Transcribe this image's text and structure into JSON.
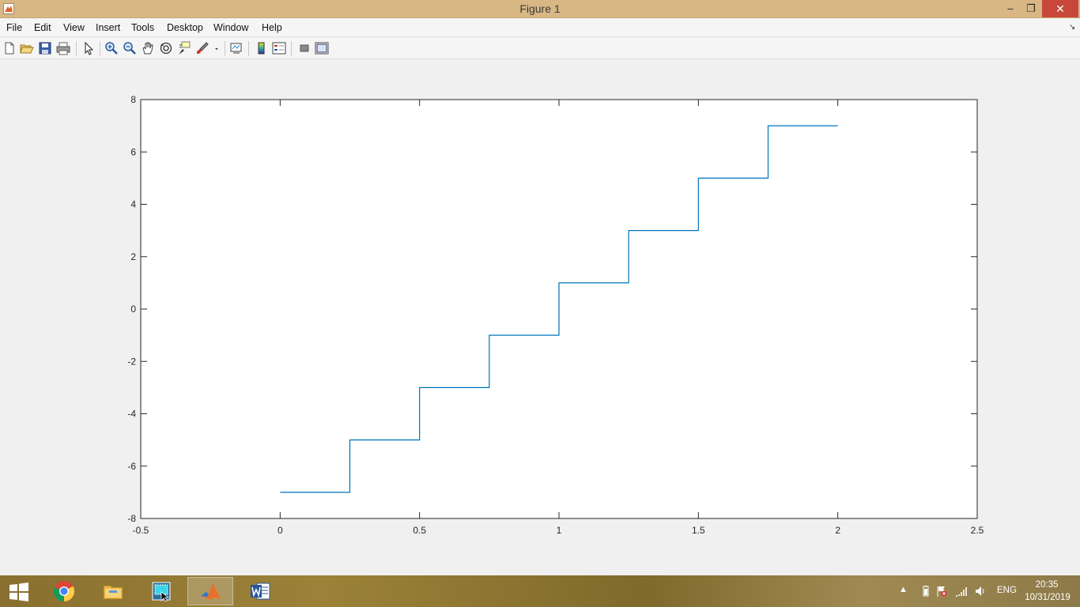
{
  "window": {
    "title": "Figure 1",
    "min_glyph": "–",
    "restore_glyph": "❐",
    "close_glyph": "✕"
  },
  "menu": {
    "items": [
      "File",
      "Edit",
      "View",
      "Insert",
      "Tools",
      "Desktop",
      "Window",
      "Help"
    ],
    "dock_glyph": "↘"
  },
  "toolbar": {
    "icons": [
      "new-figure-icon",
      "open-file-icon",
      "save-icon",
      "print-icon",
      "edit-plot-arrow-icon",
      "zoom-in-icon",
      "zoom-out-icon",
      "pan-hand-icon",
      "rotate-3d-icon",
      "data-cursor-icon",
      "brush-icon",
      "brush-dropdown-icon",
      "link-plot-icon",
      "insert-colorbar-icon",
      "insert-legend-icon",
      "hide-plot-tools-icon",
      "show-plot-tools-icon"
    ]
  },
  "chart_data": {
    "type": "line",
    "title": "",
    "xlabel": "",
    "ylabel": "",
    "xlim": [
      -0.5,
      2.5
    ],
    "ylim": [
      -8,
      8
    ],
    "xticks": [
      -0.5,
      0,
      0.5,
      1,
      1.5,
      2,
      2.5
    ],
    "xtick_labels": [
      "-0.5",
      "0",
      "0.5",
      "1",
      "1.5",
      "2",
      "2.5"
    ],
    "yticks": [
      -8,
      -6,
      -4,
      -2,
      0,
      2,
      4,
      6,
      8
    ],
    "ytick_labels": [
      "-8",
      "-6",
      "-4",
      "-2",
      "0",
      "2",
      "4",
      "6",
      "8"
    ],
    "grid": false,
    "series": [
      {
        "color": "#0072bd",
        "x": [
          0,
          0.25,
          0.25,
          0.5,
          0.5,
          0.75,
          0.75,
          1,
          1,
          1.25,
          1.25,
          1.5,
          1.5,
          1.75,
          1.75,
          2
        ],
        "y": [
          -7,
          -7,
          -5,
          -5,
          -3,
          -3,
          -1,
          -1,
          1,
          1,
          3,
          3,
          5,
          5,
          7,
          7
        ]
      }
    ]
  },
  "taskbar": {
    "apps": [
      "start-icon",
      "chrome-icon",
      "file-explorer-icon",
      "snipping-tool-icon",
      "matlab-icon",
      "word-icon"
    ],
    "tray_chevron": "▲",
    "language": "ENG",
    "time": "20:35",
    "date": "10/31/2019"
  }
}
